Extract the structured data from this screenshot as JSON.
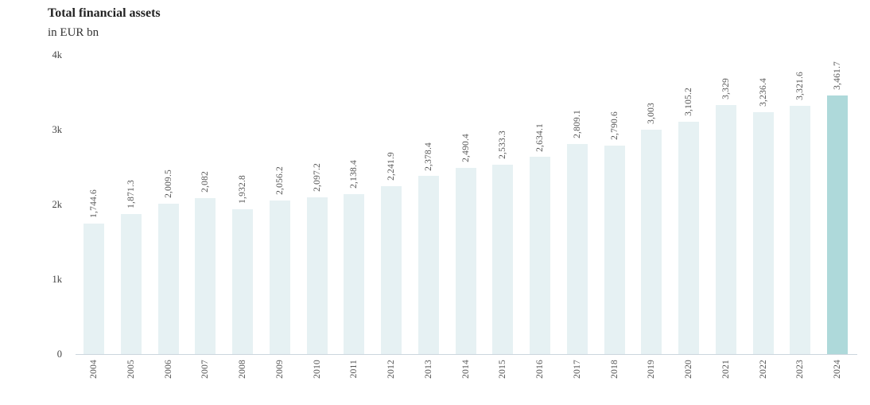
{
  "header": {
    "title": "Total financial assets",
    "subtitle": "in EUR bn"
  },
  "chart_data": {
    "type": "bar",
    "title": "Total financial assets",
    "subtitle": "in EUR bn",
    "xlabel": "",
    "ylabel": "EUR bn",
    "categories": [
      "2004",
      "2005",
      "2006",
      "2007",
      "2008",
      "2009",
      "2010",
      "2011",
      "2012",
      "2013",
      "2014",
      "2015",
      "2016",
      "2017",
      "2018",
      "2019",
      "2020",
      "2021",
      "2022",
      "2023",
      "2024"
    ],
    "values": [
      1744.6,
      1871.3,
      2009.5,
      2082,
      1932.8,
      2056.2,
      2097.2,
      2138.4,
      2241.9,
      2378.4,
      2490.4,
      2533.3,
      2634.1,
      2809.1,
      2790.6,
      3003,
      3105.2,
      3329,
      3236.4,
      3321.6,
      3461.7
    ],
    "value_labels": [
      "1,744.6",
      "1,871.3",
      "2,009.5",
      "2,082",
      "1,932.8",
      "2,056.2",
      "2,097.2",
      "2,138.4",
      "2,241.9",
      "2,378.4",
      "2,490.4",
      "2,533.3",
      "2,634.1",
      "2,809.1",
      "2,790.6",
      "3,003",
      "3,105.2",
      "3,329",
      "3,236.4",
      "3,321.6",
      "3,461.7"
    ],
    "ylim": [
      0,
      4000
    ],
    "yticks": [
      {
        "value": 0,
        "label": "0"
      },
      {
        "value": 1000,
        "label": "1k"
      },
      {
        "value": 2000,
        "label": "2k"
      },
      {
        "value": 3000,
        "label": "3k"
      },
      {
        "value": 4000,
        "label": "4k"
      }
    ],
    "grid": false,
    "legend": false,
    "bar_orientation": "vertical",
    "value_label_rotation": -90,
    "tick_label_rotation": -90,
    "colors": {
      "bar_default": "#e6f1f3",
      "bar_highlight": "#aed9da",
      "highlight_index": 20,
      "axis_line": "#ccd6dd",
      "label_text": "#555555",
      "title_text": "#222222"
    }
  }
}
